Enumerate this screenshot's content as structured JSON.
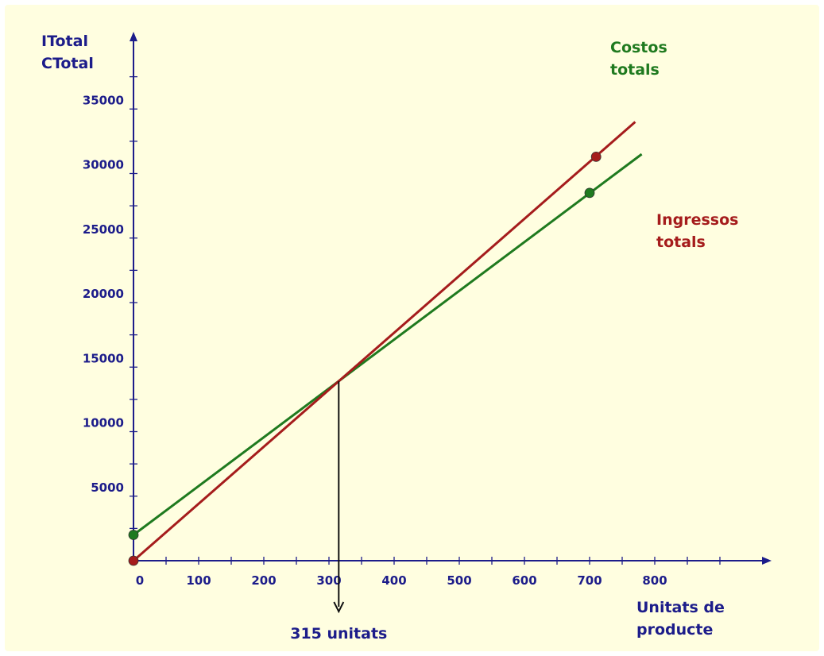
{
  "colors": {
    "background": "#fffee0",
    "axis": "#1c1c8a",
    "costs": "#1f7a1f",
    "revenue": "#a51c1c",
    "marker": "#111111"
  },
  "chart_data": {
    "type": "line",
    "title": "",
    "ylabel": [
      "ITotal",
      "CTotal"
    ],
    "xlabel": [
      "Unitats de",
      "producte"
    ],
    "xlim": [
      0,
      940
    ],
    "ylim": [
      0,
      39000
    ],
    "xticks": [
      0,
      100,
      200,
      300,
      400,
      500,
      600,
      700,
      800
    ],
    "xtick_labels": [
      "0",
      "100",
      "200",
      "300",
      "400",
      "500",
      "600",
      "700",
      "800"
    ],
    "yticks": [
      5000,
      10000,
      15000,
      20000,
      25000,
      30000,
      35000
    ],
    "ytick_labels": [
      "5000",
      "10000",
      "15000",
      "20000",
      "25000",
      "30000",
      "35000"
    ],
    "series": [
      {
        "name": "Costos totals",
        "label_lines": [
          "Costos",
          "totals"
        ],
        "color": "#1f7a1f",
        "x": [
          0,
          780
        ],
        "y": [
          2000,
          31500
        ],
        "points": [
          {
            "x": 0,
            "y": 2000
          },
          {
            "x": 700,
            "y": 28500
          }
        ]
      },
      {
        "name": "Ingressos totals",
        "label_lines": [
          "Ingressos",
          "totals"
        ],
        "color": "#a51c1c",
        "x": [
          0,
          770
        ],
        "y": [
          0,
          34000
        ],
        "points": [
          {
            "x": 0,
            "y": 0
          },
          {
            "x": 710,
            "y": 31300
          }
        ]
      }
    ],
    "annotation": {
      "x": 315,
      "y": 13900,
      "label": "315 unitats"
    },
    "grid": false,
    "legend": "none"
  }
}
